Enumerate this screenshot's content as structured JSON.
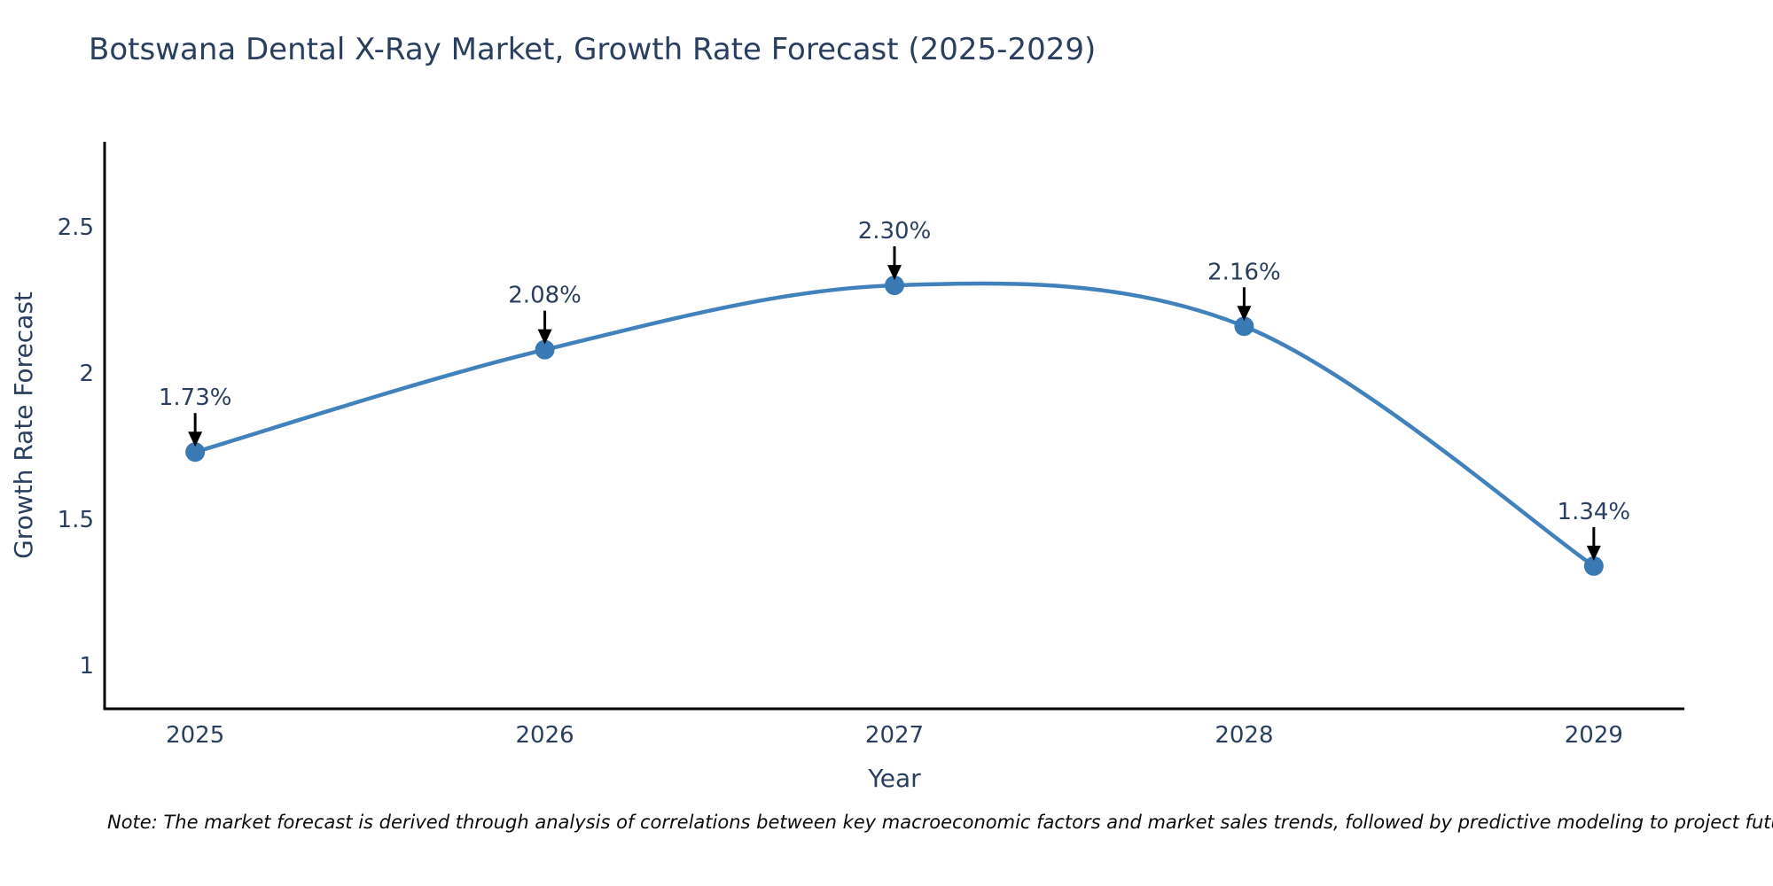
{
  "title": "Botswana Dental X-Ray Market, Growth Rate Forecast (2025-2029)",
  "note": "Note: The market forecast is derived through analysis of correlations between key macroeconomic factors and market sales trends, followed by predictive modeling to project future sales",
  "chart_data": {
    "type": "line",
    "title": "Botswana Dental X-Ray Market, Growth Rate Forecast (2025-2029)",
    "xlabel": "Year",
    "ylabel": "Growth Rate Forecast",
    "x": [
      2025,
      2026,
      2027,
      2028,
      2029
    ],
    "series": [
      {
        "name": "Growth Rate Forecast",
        "values": [
          1.73,
          2.08,
          2.3,
          2.16,
          1.34
        ]
      }
    ],
    "point_labels": [
      "1.73%",
      "2.08%",
      "2.30%",
      "2.16%",
      "1.34%"
    ],
    "xtick_labels": [
      "2025",
      "2026",
      "2027",
      "2028",
      "2029"
    ],
    "yticks": [
      1,
      1.5,
      2,
      2.5
    ],
    "ytick_labels": [
      "1",
      "1.5",
      "2",
      "2.5"
    ],
    "xlim": [
      2024.741,
      2029.259
    ],
    "ylim": [
      0.852,
      2.791
    ],
    "grid": false,
    "legend_position": "none",
    "line_color": "#4181bc",
    "marker_color": "#3a7ab4",
    "axis_color": "#000000",
    "text_color": "#2a3f5f",
    "annotation_arrow_color": "#000000"
  }
}
